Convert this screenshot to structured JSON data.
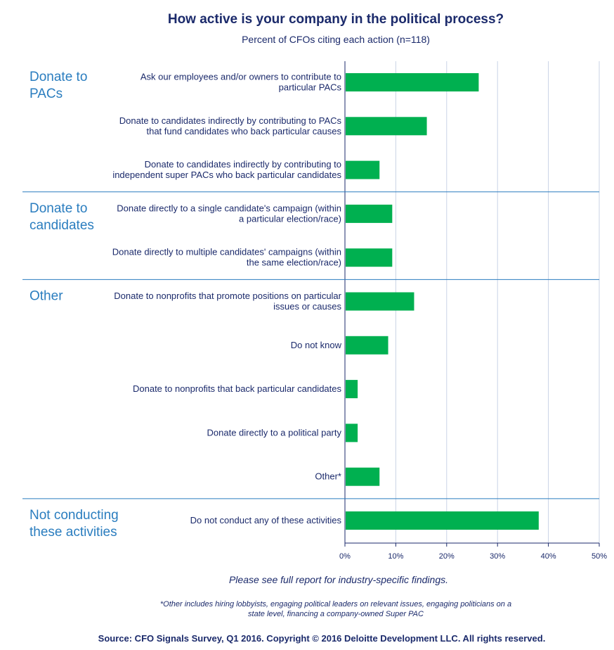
{
  "chart_data": {
    "type": "bar",
    "orientation": "horizontal",
    "title": "How active is your company in the political process?",
    "subtitle": "Percent of CFOs citing each action (n=118)",
    "xlim": [
      0,
      50
    ],
    "x_ticks": [
      "0%",
      "10%",
      "20%",
      "30%",
      "40%",
      "50%"
    ],
    "grid": "vertical",
    "bar_color": "#00b050",
    "groups": [
      {
        "name": [
          "Donate to",
          "PACs"
        ],
        "items": [
          {
            "label": [
              "Ask our employees and/or owners to contribute to",
              "particular PACs"
            ],
            "value": 26.3
          },
          {
            "label": [
              "Donate to candidates indirectly by contributing to PACs",
              "that fund candidates who back particular causes"
            ],
            "value": 16.1
          },
          {
            "label": [
              "Donate to candidates indirectly by contributing to",
              "independent super PACs who back particular candidates"
            ],
            "value": 6.8
          }
        ]
      },
      {
        "name": [
          "Donate to",
          "candidates"
        ],
        "items": [
          {
            "label": [
              "Donate directly to a single candidate's campaign (within",
              "a particular election/race)"
            ],
            "value": 9.3
          },
          {
            "label": [
              "Donate directly to multiple candidates' campaigns (within",
              "the same election/race)"
            ],
            "value": 9.3
          }
        ]
      },
      {
        "name": [
          "Other"
        ],
        "items": [
          {
            "label": [
              "Donate to nonprofits that promote positions on particular",
              "issues or causes"
            ],
            "value": 13.6
          },
          {
            "label": [
              "Do not know"
            ],
            "value": 8.5
          },
          {
            "label": [
              "Donate to nonprofits that back particular candidates"
            ],
            "value": 2.5
          },
          {
            "label": [
              "Donate directly to a political party"
            ],
            "value": 2.5
          },
          {
            "label": [
              "Other*"
            ],
            "value": 6.8
          }
        ]
      },
      {
        "name": [
          "Not conducting",
          "these activities"
        ],
        "items": [
          {
            "label": [
              "Do not conduct any of these activities"
            ],
            "value": 38.1
          }
        ]
      }
    ]
  },
  "note": "Please see full report for industry-specific findings.",
  "footnote": [
    "*Other includes hiring lobbyists, engaging political leaders on relevant issues, engaging politicians on a",
    "state level, financing a company-owned Super PAC"
  ],
  "source": "Source: CFO Signals Survey, Q1 2016. Copyright © 2016 Deloitte Development LLC. All rights reserved."
}
